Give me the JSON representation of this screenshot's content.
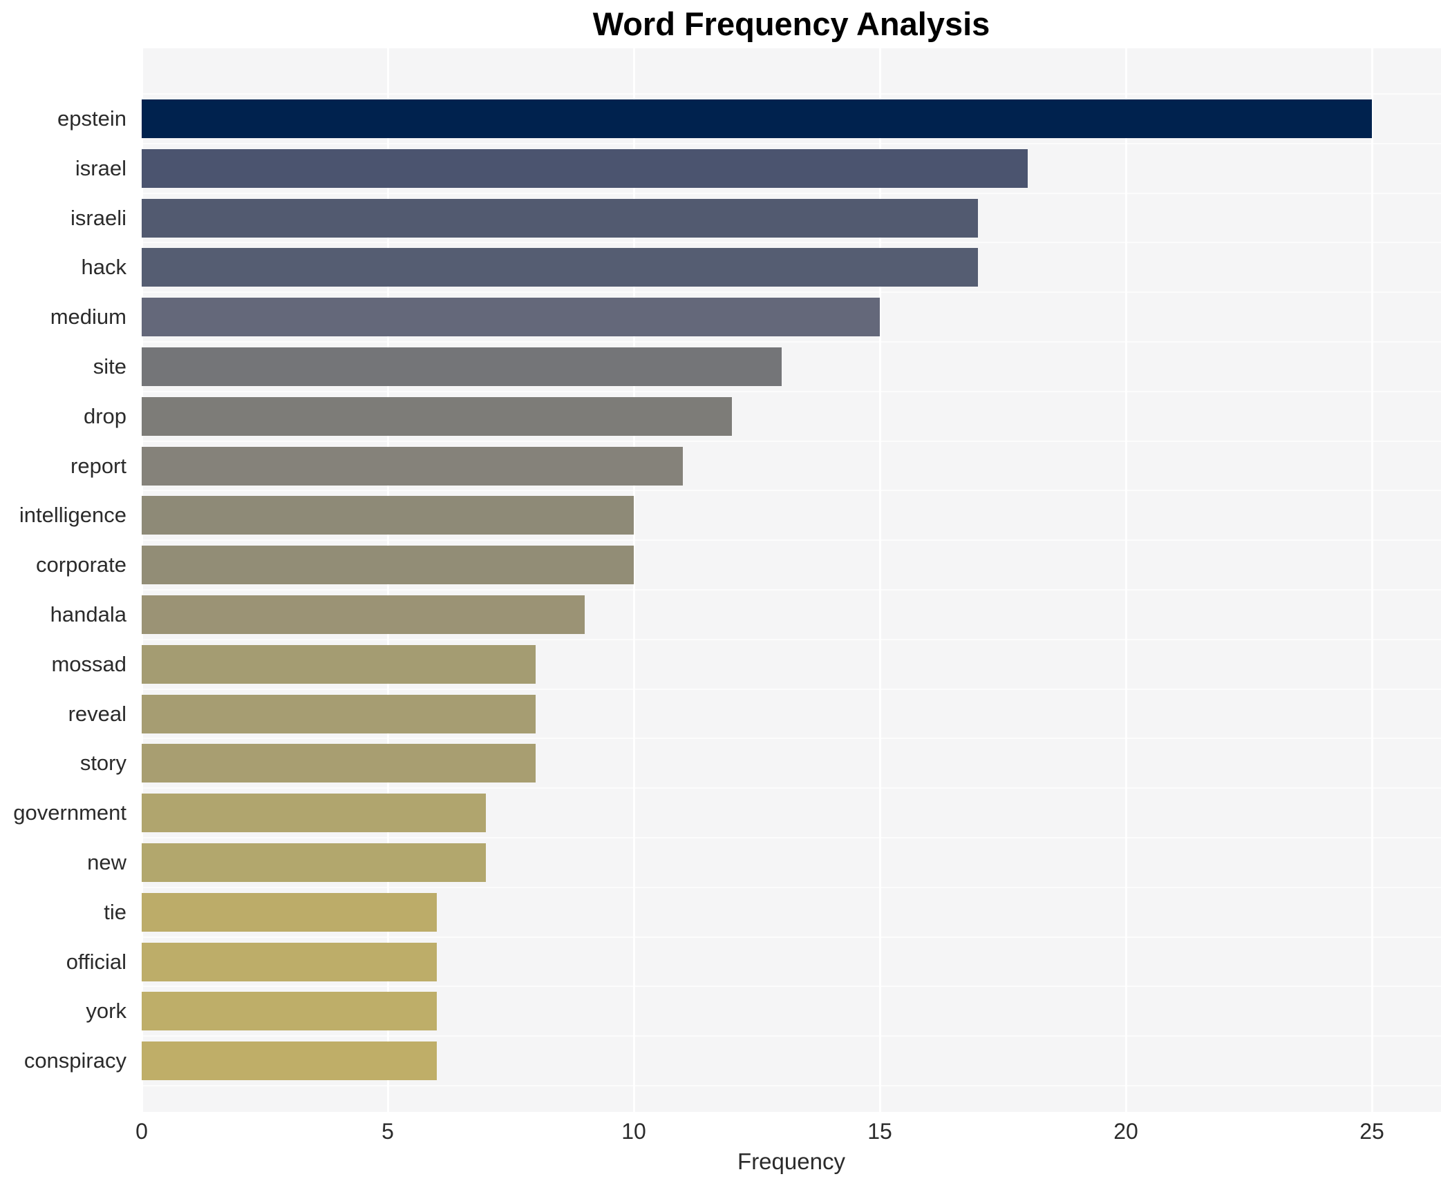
{
  "page": {
    "background": "#ffffff"
  },
  "chart_data": {
    "type": "bar",
    "orientation": "horizontal",
    "title": "Word Frequency Analysis",
    "xlabel": "Frequency",
    "ylabel": "",
    "categories": [
      "epstein",
      "israel",
      "israeli",
      "hack",
      "medium",
      "site",
      "drop",
      "report",
      "intelligence",
      "corporate",
      "handala",
      "mossad",
      "reveal",
      "story",
      "government",
      "new",
      "tie",
      "official",
      "york",
      "conspiracy"
    ],
    "values": [
      25,
      18,
      17,
      17,
      15,
      13,
      12,
      11,
      10,
      10,
      9,
      8,
      8,
      8,
      7,
      7,
      6,
      6,
      6,
      6
    ],
    "bar_colors": [
      "#00224e",
      "#4b546f",
      "#525a70",
      "#555d72",
      "#64687a",
      "#747578",
      "#7d7c78",
      "#85827a",
      "#8e8a77",
      "#928d76",
      "#9b9375",
      "#a49c72",
      "#a69d72",
      "#a89e71",
      "#b0a56e",
      "#b2a76d",
      "#bcac69",
      "#bdad69",
      "#beae69",
      "#bfae68"
    ],
    "xticks": [
      0,
      5,
      10,
      15,
      20,
      25
    ],
    "xlim": [
      0,
      26.4
    ],
    "grid": true,
    "legend": null,
    "colors": {
      "plot_bg": "#f5f5f6",
      "grid": "#ffffff",
      "text": "#2b2b2b",
      "title": "#000000"
    }
  }
}
